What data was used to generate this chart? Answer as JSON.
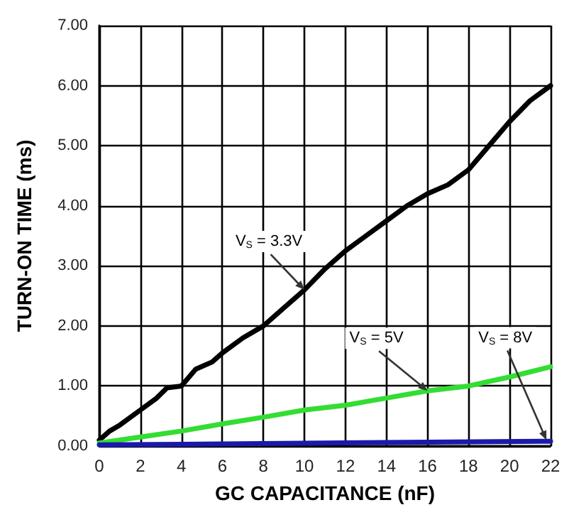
{
  "chart_data": {
    "type": "line",
    "xlabel": "GC CAPACITANCE (nF)",
    "ylabel": "TURN-ON TIME (ms)",
    "xlim": [
      0,
      22
    ],
    "xticks": [
      0,
      2,
      4,
      6,
      8,
      10,
      12,
      14,
      16,
      18,
      20,
      22
    ],
    "ylim": [
      0,
      7
    ],
    "yticks": [
      {
        "value": 0,
        "label": "0.00"
      },
      {
        "value": 1,
        "label": "1.00"
      },
      {
        "value": 2,
        "label": "2.00"
      },
      {
        "value": 3,
        "label": "3.00"
      },
      {
        "value": 4,
        "label": "4.00"
      },
      {
        "value": 5,
        "label": "5.00"
      },
      {
        "value": 6,
        "label": "6.00"
      },
      {
        "value": 7,
        "label": "7.00"
      }
    ],
    "grid": true,
    "marker": "none",
    "line_style": "solid",
    "series": [
      {
        "color": "#000000",
        "x": [
          0,
          0.5,
          1,
          2,
          2.8,
          3.3,
          4,
          4.7,
          5.5,
          6,
          7,
          8,
          9,
          10,
          11,
          12,
          13,
          14,
          15,
          16,
          17,
          18,
          19,
          20,
          21,
          22
        ],
        "values": [
          0.1,
          0.25,
          0.35,
          0.6,
          0.8,
          0.97,
          1.0,
          1.28,
          1.4,
          1.55,
          1.8,
          2.0,
          2.3,
          2.6,
          2.95,
          3.25,
          3.5,
          3.75,
          4.0,
          4.2,
          4.35,
          4.6,
          5.0,
          5.4,
          5.75,
          6.0
        ]
      },
      {
        "color": "#33dd33",
        "x": [
          0,
          2,
          4,
          6,
          8,
          10,
          12,
          14,
          16,
          18,
          20,
          22
        ],
        "values": [
          0.05,
          0.15,
          0.25,
          0.37,
          0.48,
          0.6,
          0.68,
          0.8,
          0.92,
          1.0,
          1.15,
          1.32
        ]
      },
      {
        "color": "#1a1aaa",
        "x": [
          0,
          22
        ],
        "values": [
          0.02,
          0.08
        ]
      }
    ],
    "annotations": [
      {
        "text": "V$_{S}$ = 3.3V",
        "x": 10,
        "y": 2.6
      },
      {
        "text": "V$_{S}$ = 5V",
        "x": 16,
        "y": 0.92
      },
      {
        "text": "V$_{S}$ = 8V",
        "x": 21.8,
        "y": 0.1
      }
    ]
  }
}
